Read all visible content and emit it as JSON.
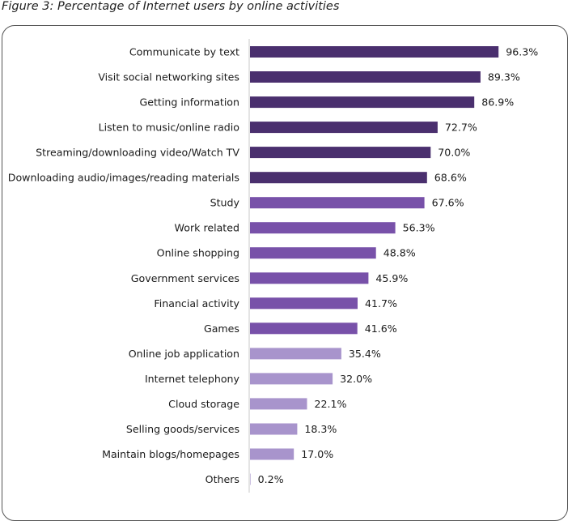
{
  "figure_title": "Figure 3: Percentage of Internet users by online activities",
  "colors": {
    "dark": "#4a2f6e",
    "medium": "#7851a9",
    "light": "#a894cc",
    "axis": "#c8c8c8"
  },
  "chart_data": {
    "type": "bar",
    "orientation": "horizontal",
    "title": "Figure 3: Percentage of Internet users by online activities",
    "xlabel": "",
    "ylabel": "",
    "xlim": [
      0,
      100
    ],
    "grid": false,
    "legend": "none",
    "categories": [
      "Communicate by text",
      "Visit social networking sites",
      "Getting information",
      "Listen to music/online radio",
      "Streaming/downloading video/Watch TV",
      "Downloading audio/images/reading materials",
      "Study",
      "Work related",
      "Online shopping",
      "Government services",
      "Financial activity",
      "Games",
      "Online job application",
      "Internet telephony",
      "Cloud storage",
      "Selling goods/services",
      "Maintain blogs/homepages",
      "Others"
    ],
    "values": [
      96.3,
      89.3,
      86.9,
      72.7,
      70.0,
      68.6,
      67.6,
      56.3,
      48.8,
      45.9,
      41.7,
      41.6,
      35.4,
      32.0,
      22.1,
      18.3,
      17.0,
      0.2
    ],
    "value_labels": [
      "96.3%",
      "89.3%",
      "86.9%",
      "72.7%",
      "70.0%",
      "68.6%",
      "67.6%",
      "56.3%",
      "48.8%",
      "45.9%",
      "41.7%",
      "41.6%",
      "35.4%",
      "32.0%",
      "22.1%",
      "18.3%",
      "17.0%",
      "0.2%"
    ],
    "bar_shades": [
      "dark",
      "dark",
      "dark",
      "dark",
      "dark",
      "dark",
      "medium",
      "medium",
      "medium",
      "medium",
      "medium",
      "medium",
      "light",
      "light",
      "light",
      "light",
      "light",
      "light"
    ]
  }
}
